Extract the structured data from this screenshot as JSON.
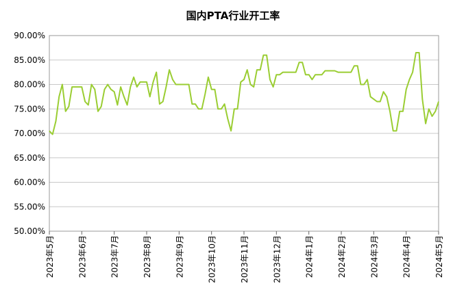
{
  "chart_data": {
    "type": "line",
    "title": "国内PTA行业开工率",
    "categories": [
      "2023年5月",
      null,
      null,
      null,
      null,
      null,
      null,
      null,
      null,
      null,
      "2023年6月",
      null,
      null,
      null,
      null,
      null,
      null,
      null,
      null,
      null,
      "2023年7月",
      null,
      null,
      null,
      null,
      null,
      null,
      null,
      null,
      null,
      "2023年8月",
      null,
      null,
      null,
      null,
      null,
      null,
      null,
      null,
      null,
      "2023年9月",
      null,
      null,
      null,
      null,
      null,
      null,
      null,
      null,
      null,
      "2023年10月",
      null,
      null,
      null,
      null,
      null,
      null,
      null,
      null,
      null,
      "2023年11月",
      null,
      null,
      null,
      null,
      null,
      null,
      null,
      null,
      null,
      "2023年12月",
      null,
      null,
      null,
      null,
      null,
      null,
      null,
      null,
      null,
      "2024年1月",
      null,
      null,
      null,
      null,
      null,
      null,
      null,
      null,
      null,
      "2024年2月",
      null,
      null,
      null,
      null,
      null,
      null,
      null,
      null,
      null,
      "2024年3月",
      null,
      null,
      null,
      null,
      null,
      null,
      null,
      null,
      null,
      "2024年4月",
      null,
      null,
      null,
      null,
      null,
      null,
      null,
      null,
      null,
      "2024年5月"
    ],
    "values": [
      70.5,
      69.8,
      72.5,
      77.5,
      80,
      74.5,
      75.5,
      79.5,
      79.5,
      79.5,
      79.5,
      76.5,
      75.8,
      80,
      79,
      74.5,
      75.5,
      79,
      80,
      79,
      78.5,
      75.8,
      79.5,
      77.5,
      75.8,
      79.5,
      81.5,
      79.5,
      80.5,
      80.5,
      80.5,
      77.5,
      80.5,
      82.5,
      76,
      76.5,
      79.5,
      83,
      81,
      80,
      80,
      80,
      80,
      80,
      76,
      76,
      75,
      75,
      78,
      81.5,
      79,
      79,
      75,
      75,
      76,
      73,
      70.5,
      75,
      75,
      80.5,
      81,
      83,
      80,
      79.5,
      83,
      83,
      86,
      86,
      81,
      79.5,
      82,
      82,
      82.5,
      82.5,
      82.5,
      82.5,
      82.5,
      84.5,
      84.5,
      82,
      82,
      81,
      82,
      82,
      82,
      82.8,
      82.8,
      82.8,
      82.8,
      82.5,
      82.5,
      82.5,
      82.5,
      82.5,
      83.8,
      83.8,
      80,
      80,
      81,
      77.5,
      77,
      76.5,
      76.5,
      78.5,
      77.5,
      74.5,
      70.5,
      70.5,
      74.5,
      74.5,
      79,
      81,
      82.5,
      86.5,
      86.5,
      77,
      72,
      75,
      73.5,
      74.5,
      76.5
    ],
    "color": "#9acd32",
    "ylim": [
      50,
      90
    ],
    "yticks": [
      {
        "value": 50,
        "label": "50.00%"
      },
      {
        "value": 55,
        "label": "55.00%"
      },
      {
        "value": 60,
        "label": "60.00%"
      },
      {
        "value": 65,
        "label": "65.00%"
      },
      {
        "value": 70,
        "label": "70.00%"
      },
      {
        "value": 75,
        "label": "75.00%"
      },
      {
        "value": 80,
        "label": "80.00%"
      },
      {
        "value": 85,
        "label": "85.00%"
      },
      {
        "value": 90,
        "label": "90.00%"
      }
    ],
    "grid": true
  }
}
